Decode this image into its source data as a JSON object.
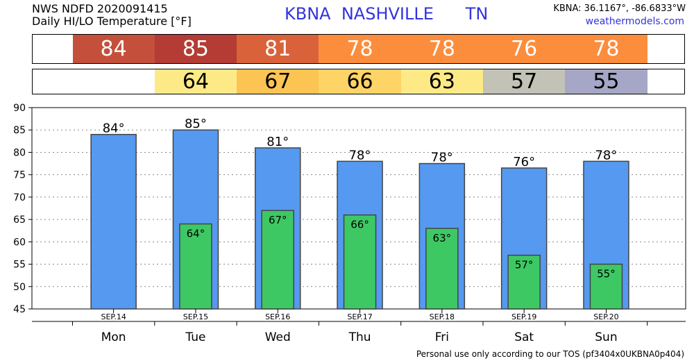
{
  "header": {
    "line1": "NWS NDFD 2020091415",
    "line2": "Daily HI/LO Temperature [°F]",
    "station": "KBNA  NASHVILLE      TN",
    "coords": "KBNA: 36.1167°, -86.6833°W",
    "site": "weathermodels.com"
  },
  "hi_strip": [
    {
      "value": "84",
      "color": "#c4503c"
    },
    {
      "value": "85",
      "color": "#b43c35"
    },
    {
      "value": "81",
      "color": "#d9623a"
    },
    {
      "value": "78",
      "color": "#fb8d3d"
    },
    {
      "value": "78",
      "color": "#fb8d3d"
    },
    {
      "value": "76",
      "color": "#fb8d3d"
    },
    {
      "value": "78",
      "color": "#fb8d3d"
    }
  ],
  "lo_strip": [
    {
      "value": "",
      "color": "#ffffff"
    },
    {
      "value": "64",
      "color": "#fdea86"
    },
    {
      "value": "67",
      "color": "#fcc453"
    },
    {
      "value": "66",
      "color": "#fdd465"
    },
    {
      "value": "63",
      "color": "#fdea86"
    },
    {
      "value": "57",
      "color": "#c2c2b6"
    },
    {
      "value": "55",
      "color": "#a6a6c6"
    }
  ],
  "chart_data": {
    "type": "bar",
    "categories": [
      "Mon",
      "Tue",
      "Wed",
      "Thu",
      "Fri",
      "Sat",
      "Sun"
    ],
    "dates": [
      "SEP.14",
      "SEP.15",
      "SEP.16",
      "SEP.17",
      "SEP.18",
      "SEP.19",
      "SEP.20"
    ],
    "series": [
      {
        "values": [
          84,
          85,
          81,
          78,
          77.5,
          76.5,
          78
        ],
        "labels": [
          "84°",
          "85°",
          "81°",
          "78°",
          "78°",
          "76°",
          "78°"
        ],
        "color": "#5599f0"
      },
      {
        "values": [
          null,
          64,
          67,
          66,
          63,
          57,
          55
        ],
        "labels": [
          "",
          "64°",
          "67°",
          "66°",
          "63°",
          "57°",
          "55°"
        ],
        "color": "#3ec864"
      }
    ],
    "ylim": [
      45,
      90
    ],
    "yticks": [
      45,
      50,
      55,
      60,
      65,
      70,
      75,
      80,
      85,
      90
    ],
    "grid": true
  },
  "footer": "Personal use only according to our TOS (pf3404x0UKBNA0p404)"
}
